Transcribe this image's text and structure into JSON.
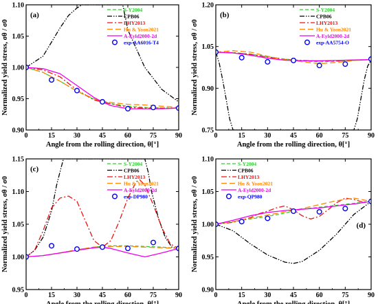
{
  "colors": {
    "S-Y2004": "#33cc33",
    "CPB06": "#000000",
    "LHY2013": "#ee1111",
    "Hu & Yoon2021": "#ff8800",
    "A-Eyld2000-2d": "#ee00ee",
    "exp": "#0000ee"
  },
  "chart_data": [
    {
      "type": "line",
      "panel_label": "(a)",
      "xlabel": "Angle from the rolling direction, θ[°]",
      "ylabel": "Normalized yield stress, σθ / σ0",
      "xlim": [
        0,
        90
      ],
      "ylim": [
        0.9,
        1.1
      ],
      "xticks": [
        "0",
        "15",
        "30",
        "45",
        "60",
        "75",
        "90"
      ],
      "yticks": [
        "0.90",
        "0.95",
        "1.00",
        "1.05",
        "1.10"
      ],
      "legend_position": "top-right",
      "series": [
        {
          "name": "S-Y2004",
          "style": "dash",
          "x": [
            0,
            10,
            20,
            30,
            40,
            45,
            50,
            60,
            70,
            80,
            90
          ],
          "y": [
            1.0,
            0.992,
            0.978,
            0.962,
            0.949,
            0.945,
            0.942,
            0.938,
            0.936,
            0.935,
            0.935
          ]
        },
        {
          "name": "CPB06",
          "style": "dashdotdot",
          "x": [
            0,
            10,
            20,
            25,
            30,
            33,
            45,
            57,
            60,
            65,
            70,
            80,
            90
          ],
          "y": [
            1.0,
            1.018,
            1.063,
            1.083,
            1.095,
            1.1,
            1.1,
            1.1,
            1.06,
            1.03,
            1.0,
            0.965,
            0.945
          ]
        },
        {
          "name": "LHY2013",
          "style": "dashdot",
          "x": [
            0,
            10,
            20,
            30,
            40,
            45,
            50,
            60,
            70,
            80,
            90
          ],
          "y": [
            1.0,
            0.996,
            0.985,
            0.964,
            0.948,
            0.945,
            0.942,
            0.936,
            0.935,
            0.935,
            0.935
          ]
        },
        {
          "name": "Hu & Yoon2021",
          "style": "longdash",
          "x": [
            0,
            10,
            20,
            30,
            40,
            45,
            50,
            60,
            70,
            80,
            90
          ],
          "y": [
            1.0,
            0.992,
            0.978,
            0.962,
            0.95,
            0.946,
            0.944,
            0.941,
            0.94,
            0.938,
            0.936
          ]
        },
        {
          "name": "A-Eyld2000-2d",
          "style": "solid",
          "x": [
            0,
            10,
            20,
            30,
            40,
            45,
            50,
            60,
            70,
            80,
            90
          ],
          "y": [
            1.0,
            0.998,
            0.99,
            0.971,
            0.952,
            0.945,
            0.939,
            0.934,
            0.934,
            0.934,
            0.935
          ]
        },
        {
          "name": "exp-AA6016-T4",
          "style": "marker",
          "x": [
            0,
            15,
            30,
            45,
            60,
            75,
            90
          ],
          "y": [
            1.0,
            0.98,
            0.963,
            0.945,
            0.934,
            0.936,
            0.935
          ]
        }
      ]
    },
    {
      "type": "line",
      "panel_label": "(b)",
      "xlabel": "Angle from the rolling direction, θ[°]",
      "ylabel": "Normalized yield stress, σθ / σ0",
      "xlim": [
        0,
        90
      ],
      "ylim": [
        0.75,
        1.2
      ],
      "xticks": [
        "0",
        "15",
        "30",
        "45",
        "60",
        "75",
        "90"
      ],
      "yticks": [
        "0.75",
        "0.90",
        "1.05",
        "1.20"
      ],
      "legend_position": "top-right",
      "series": [
        {
          "name": "S-Y2004",
          "style": "dash",
          "x": [
            0,
            10,
            20,
            30,
            40,
            45,
            50,
            60,
            70,
            80,
            90
          ],
          "y": [
            1.03,
            1.028,
            1.023,
            1.013,
            1.005,
            1.002,
            0.998,
            0.995,
            0.997,
            1.0,
            1.003
          ]
        },
        {
          "name": "CPB06",
          "style": "dashdotdot",
          "x": [
            0,
            2,
            4,
            6,
            8,
            10,
            80,
            82,
            84,
            86,
            88,
            90
          ],
          "y": [
            1.03,
            0.99,
            0.93,
            0.86,
            0.79,
            0.75,
            0.75,
            0.79,
            0.86,
            0.93,
            0.98,
            1.0
          ]
        },
        {
          "name": "LHY2013",
          "style": "dashdot",
          "x": [
            0,
            10,
            20,
            30,
            40,
            45,
            50,
            60,
            70,
            80,
            90
          ],
          "y": [
            1.03,
            1.028,
            1.022,
            1.012,
            1.004,
            1.002,
            1.0,
            0.998,
            0.999,
            1.001,
            1.003
          ]
        },
        {
          "name": "Hu & Yoon2021",
          "style": "longdash",
          "x": [
            0,
            10,
            20,
            30,
            40,
            45,
            50,
            60,
            70,
            80,
            90
          ],
          "y": [
            1.03,
            1.035,
            1.03,
            1.015,
            1.003,
            1.0,
            0.995,
            0.988,
            0.993,
            1.0,
            1.003
          ]
        },
        {
          "name": "A-Eyld2000-2d",
          "style": "solid",
          "x": [
            0,
            10,
            20,
            30,
            40,
            45,
            50,
            60,
            70,
            80,
            90
          ],
          "y": [
            1.03,
            1.027,
            1.019,
            1.008,
            1.001,
            1.0,
            0.999,
            0.999,
            1.0,
            1.002,
            1.003
          ]
        },
        {
          "name": "exp-AA5754-O",
          "style": "marker",
          "x": [
            0,
            15,
            30,
            45,
            60,
            75,
            90
          ],
          "y": [
            1.03,
            1.01,
            0.995,
            1.0,
            0.982,
            0.987,
            1.005
          ]
        }
      ]
    },
    {
      "type": "line",
      "panel_label": "(c)",
      "xlabel": "Angle from the rolling direction, θ[°]",
      "ylabel": "Normalized yield stress, σθ / σ0",
      "xlim": [
        0,
        90
      ],
      "ylim": [
        0.95,
        1.15
      ],
      "xticks": [
        "0",
        "15",
        "30",
        "45",
        "60",
        "75",
        "90"
      ],
      "yticks": [
        "0.95",
        "1.00",
        "1.05",
        "1.10",
        "1.15"
      ],
      "legend_position": "top-right",
      "series": [
        {
          "name": "S-Y2004",
          "style": "dash",
          "x": [
            0,
            10,
            20,
            30,
            40,
            45,
            50,
            60,
            70,
            80,
            90
          ],
          "y": [
            1.0,
            1.002,
            1.006,
            1.011,
            1.015,
            1.016,
            1.017,
            1.017,
            1.016,
            1.015,
            1.013
          ]
        },
        {
          "name": "CPB06",
          "style": "dashdotdot",
          "x": [
            0,
            5,
            10,
            15,
            18,
            20,
            22,
            70,
            72,
            74,
            78,
            82,
            86,
            90
          ],
          "y": [
            1.0,
            1.01,
            1.03,
            1.07,
            1.11,
            1.13,
            1.15,
            1.15,
            1.13,
            1.1,
            1.06,
            1.03,
            1.015,
            1.012
          ]
        },
        {
          "name": "LHY2013",
          "style": "dashdot",
          "x": [
            0,
            5,
            10,
            15,
            20,
            25,
            30,
            35,
            40,
            45,
            50,
            55,
            60,
            65,
            67,
            70,
            75,
            80,
            85,
            90
          ],
          "y": [
            1.0,
            1.01,
            1.04,
            1.075,
            1.09,
            1.093,
            1.085,
            1.055,
            1.025,
            1.015,
            1.025,
            1.055,
            1.09,
            1.115,
            1.118,
            1.11,
            1.08,
            1.045,
            1.02,
            1.013
          ]
        },
        {
          "name": "Hu & Yoon2021",
          "style": "longdash",
          "x": [
            0,
            10,
            20,
            30,
            40,
            45,
            50,
            60,
            70,
            80,
            90
          ],
          "y": [
            1.0,
            1.002,
            1.006,
            1.011,
            1.015,
            1.016,
            1.016,
            1.016,
            1.015,
            1.014,
            1.013
          ]
        },
        {
          "name": "A-Eyld2000-2d",
          "style": "solid",
          "x": [
            0,
            10,
            20,
            30,
            40,
            45,
            50,
            60,
            70,
            80,
            90
          ],
          "y": [
            1.0,
            1.002,
            1.006,
            1.01,
            1.014,
            1.015,
            1.013,
            1.006,
            1.0,
            1.006,
            1.013
          ]
        },
        {
          "name": "exp-DP980",
          "style": "marker",
          "x": [
            0,
            15,
            30,
            45,
            60,
            75,
            90
          ],
          "y": [
            1.0,
            1.017,
            1.012,
            1.015,
            1.013,
            1.022,
            1.013
          ]
        }
      ]
    },
    {
      "type": "line",
      "panel_label": "(d)",
      "xlabel": "Angle from the rolling direction, θ[°]",
      "ylabel": "Normalized yield stress, σθ / σ0",
      "xlim": [
        0,
        90
      ],
      "ylim": [
        0.9,
        1.1
      ],
      "xticks": [
        "0",
        "15",
        "30",
        "45",
        "60",
        "75",
        "90"
      ],
      "yticks": [
        "0.90",
        "0.95",
        "1.00",
        "1.05",
        "1.10"
      ],
      "legend_position": "top-left",
      "series": [
        {
          "name": "S-Y2004",
          "style": "dash",
          "x": [
            0,
            10,
            20,
            30,
            40,
            45,
            50,
            60,
            70,
            80,
            90
          ],
          "y": [
            1.0,
            1.004,
            1.008,
            1.012,
            1.017,
            1.02,
            1.023,
            1.026,
            1.029,
            1.032,
            1.035
          ]
        },
        {
          "name": "CPB06",
          "style": "dashdotdot",
          "x": [
            0,
            10,
            20,
            30,
            40,
            45,
            50,
            60,
            70,
            80,
            90
          ],
          "y": [
            1.0,
            0.99,
            0.97,
            0.953,
            0.942,
            0.94,
            0.943,
            0.96,
            0.985,
            1.015,
            1.035
          ]
        },
        {
          "name": "LHY2013",
          "style": "dashdot",
          "x": [
            0,
            10,
            20,
            25,
            30,
            35,
            40,
            45,
            50,
            55,
            60,
            65,
            70,
            75,
            80,
            85,
            90
          ],
          "y": [
            1.0,
            1.003,
            1.01,
            1.016,
            1.02,
            1.025,
            1.028,
            1.022,
            1.013,
            1.008,
            1.012,
            1.022,
            1.033,
            1.04,
            1.038,
            1.034,
            1.035
          ]
        },
        {
          "name": "Hu & Yoon2021",
          "style": "longdash",
          "x": [
            0,
            10,
            20,
            30,
            40,
            45,
            50,
            60,
            70,
            80,
            90
          ],
          "y": [
            1.0,
            1.004,
            1.009,
            1.014,
            1.019,
            1.021,
            1.024,
            1.03,
            1.036,
            1.04,
            1.035
          ]
        },
        {
          "name": "A-Eyld2000-2d",
          "style": "solid",
          "x": [
            0,
            10,
            20,
            30,
            40,
            45,
            50,
            60,
            70,
            80,
            90
          ],
          "y": [
            1.0,
            1.006,
            1.013,
            1.018,
            1.021,
            1.022,
            1.023,
            1.025,
            1.028,
            1.031,
            1.035
          ]
        },
        {
          "name": "exp-QP980",
          "style": "marker",
          "x": [
            0,
            15,
            30,
            45,
            60,
            75,
            90
          ],
          "y": [
            1.0,
            1.004,
            1.009,
            1.02,
            1.019,
            1.024,
            1.035
          ]
        }
      ]
    }
  ]
}
